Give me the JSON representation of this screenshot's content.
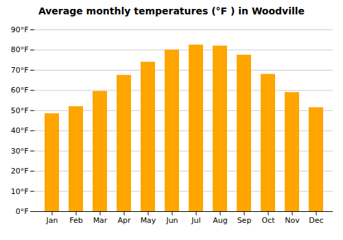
{
  "chart_data": {
    "type": "bar",
    "title": "Average monthly temperatures (°F ) in Woodville",
    "categories": [
      "Jan",
      "Feb",
      "Mar",
      "Apr",
      "May",
      "Jun",
      "Jul",
      "Aug",
      "Sep",
      "Oct",
      "Nov",
      "Dec"
    ],
    "values": [
      48.5,
      52,
      59.5,
      67.5,
      74,
      80,
      82.5,
      82,
      77.5,
      68,
      59,
      51.5
    ],
    "color": "#FFA500",
    "ylim": [
      0,
      90
    ],
    "yticks": [
      {
        "value": 0,
        "label": "0°F"
      },
      {
        "value": 10,
        "label": "10°F"
      },
      {
        "value": 20,
        "label": "20°F"
      },
      {
        "value": 30,
        "label": "30°F"
      },
      {
        "value": 40,
        "label": "40°F"
      },
      {
        "value": 50,
        "label": "50°F"
      },
      {
        "value": 60,
        "label": "60°F"
      },
      {
        "value": 70,
        "label": "70°F"
      },
      {
        "value": 80,
        "label": "80°F"
      },
      {
        "value": 90,
        "label": "90°F"
      }
    ],
    "grid": true
  }
}
